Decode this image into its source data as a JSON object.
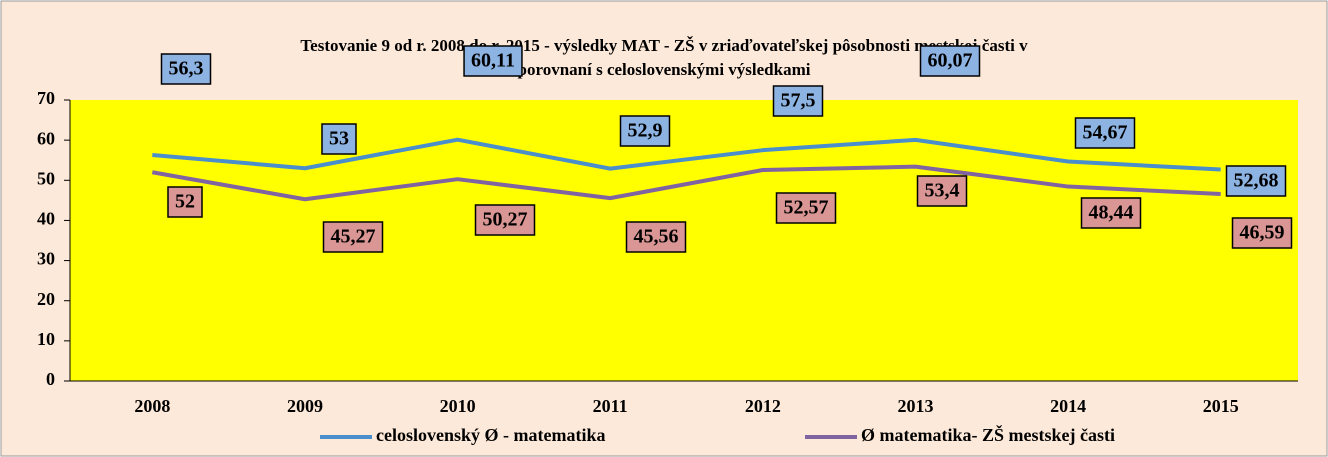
{
  "chart_data": {
    "type": "line",
    "title": "Testovanie 9 od r. 2008 do r. 2015 - výsledky  MAT - ZŠ  v zriaďovateľskej pôsobnosti mestskej časti v",
    "subtitle": "porovnaní s celoslovenskými výsledkami",
    "categories": [
      "2008",
      "2009",
      "2010",
      "2011",
      "2012",
      "2013",
      "2014",
      "2015"
    ],
    "series": [
      {
        "name": "celoslovenský Ø - matematika",
        "color": "#4a8fcc",
        "label_color": "#8db3e2",
        "values": [
          56.3,
          53,
          60.11,
          52.9,
          57.5,
          60.07,
          54.67,
          52.68
        ],
        "value_labels": [
          "56,3",
          "53",
          "60,11",
          "52,9",
          "57,5",
          "60,07",
          "54,67",
          "52,68"
        ]
      },
      {
        "name": "Ø matematika-  ZŠ mestskej časti",
        "color": "#8064a2",
        "label_color": "#d99694",
        "values": [
          52,
          45.27,
          50.27,
          45.56,
          52.57,
          53.4,
          48.44,
          46.59
        ],
        "value_labels": [
          "52",
          "45,27",
          "50,27",
          "45,56",
          "52,57",
          "53,4",
          "48,44",
          "46,59"
        ]
      }
    ],
    "ylim": [
      0,
      70
    ],
    "yticks": [
      0,
      10,
      20,
      30,
      40,
      50,
      60,
      70
    ],
    "grid": false
  }
}
